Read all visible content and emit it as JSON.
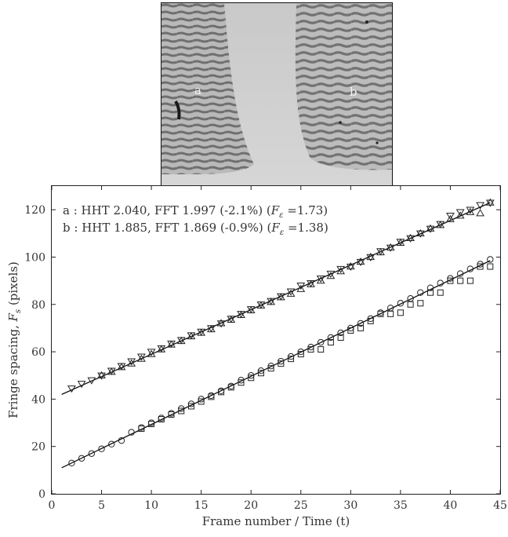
{
  "image_labels": {
    "a": "a",
    "b": "b"
  },
  "chart_data": {
    "type": "scatter",
    "xlabel": "Frame number / Time (t)",
    "ylabel_main": "Fringe spacing, ",
    "ylabel_sym": "F",
    "ylabel_sub": "s",
    "ylabel_unit": " (pixels)",
    "xlim": [
      0,
      45
    ],
    "ylim": [
      0,
      130
    ],
    "xticks": [
      0,
      5,
      10,
      15,
      20,
      25,
      30,
      35,
      40,
      45
    ],
    "yticks": [
      0,
      20,
      40,
      60,
      80,
      100,
      120
    ],
    "grid": false,
    "legend_position": "top-left",
    "legend": [
      {
        "prefix": "a : HHT 2.040, FFT 1.997 (-2.1%) (",
        "sym": "F",
        "sub": "ε",
        "suffix": " =1.73)"
      },
      {
        "prefix": "b : HHT 1.885, FFT 1.869 (-0.9%) (",
        "sym": "F",
        "sub": "ε",
        "suffix": " =1.38)"
      }
    ],
    "fit_lines": [
      {
        "name": "a",
        "x": [
          1,
          44
        ],
        "y": [
          42.0,
          123.0
        ]
      },
      {
        "name": "b",
        "x": [
          1,
          44
        ],
        "y": [
          11.0,
          98.5
        ]
      }
    ],
    "series": [
      {
        "name": "a",
        "marker": "triangle-down",
        "x": [
          2,
          3,
          4,
          5,
          6,
          7,
          8,
          9,
          10,
          11,
          12,
          13,
          14,
          15,
          16,
          17,
          18,
          19,
          20,
          21,
          22,
          23,
          24,
          25,
          26,
          27,
          28,
          29,
          30,
          31,
          32,
          33,
          34,
          35,
          36,
          37,
          38,
          39,
          40,
          41,
          42,
          43,
          44
        ],
        "y": [
          44.5,
          46.5,
          48,
          50,
          52,
          54,
          56,
          58,
          60,
          61.5,
          63.5,
          65,
          67,
          68.5,
          70,
          72,
          74,
          76,
          78,
          80,
          81.5,
          83.5,
          85.5,
          88,
          89,
          91,
          93,
          95,
          96,
          98,
          100,
          102.5,
          104,
          106.5,
          108,
          110,
          112,
          114,
          117.5,
          119,
          120,
          122,
          123
        ]
      },
      {
        "name": "a",
        "marker": "triangle-up",
        "x": [
          5,
          6,
          7,
          8,
          9,
          10,
          11,
          12,
          13,
          14,
          15,
          16,
          17,
          18,
          19,
          20,
          21,
          22,
          23,
          24,
          25,
          26,
          27,
          28,
          29,
          30,
          31,
          32,
          33,
          34,
          35,
          36,
          37,
          38,
          39,
          40,
          41,
          42,
          43,
          44
        ],
        "y": [
          50,
          51.5,
          53.5,
          55,
          57,
          59,
          61,
          63,
          64.5,
          66.5,
          68,
          69.5,
          72,
          73.5,
          75.5,
          77.5,
          79.5,
          81,
          83,
          84.5,
          86.5,
          88.5,
          90,
          92,
          94,
          96,
          98,
          100,
          102,
          104,
          106,
          108,
          110,
          112,
          113.5,
          116,
          117.5,
          119,
          118.5,
          123
        ]
      },
      {
        "name": "b",
        "marker": "circle",
        "x": [
          2,
          3,
          4,
          5,
          6,
          7,
          8,
          9,
          10,
          11,
          12,
          13,
          14,
          15,
          16,
          17,
          18,
          19,
          20,
          21,
          22,
          23,
          24,
          25,
          26,
          27,
          28,
          29,
          30,
          31,
          32,
          33,
          34,
          35,
          36,
          37,
          38,
          39,
          40,
          41,
          42,
          43,
          44
        ],
        "y": [
          13,
          15,
          17,
          19,
          21,
          22.5,
          26,
          28,
          30,
          32,
          34,
          36,
          38,
          40,
          41.5,
          43.5,
          45.5,
          48,
          50,
          52,
          54,
          56,
          58,
          60,
          62,
          64,
          66,
          68,
          70,
          72,
          74,
          76.5,
          78.5,
          80.5,
          82.5,
          85,
          87,
          89,
          91,
          93,
          95,
          97,
          99
        ]
      },
      {
        "name": "b",
        "marker": "square",
        "x": [
          9,
          10,
          11,
          12,
          13,
          14,
          15,
          16,
          17,
          18,
          19,
          20,
          21,
          22,
          23,
          24,
          25,
          26,
          27,
          28,
          29,
          30,
          31,
          32,
          33,
          34,
          35,
          36,
          37,
          38,
          39,
          40,
          41,
          42,
          43,
          44
        ],
        "y": [
          27.5,
          29.5,
          31.5,
          33.5,
          35,
          37,
          39,
          41,
          43,
          45,
          47,
          49,
          51,
          53,
          55,
          57,
          59,
          61,
          61,
          64,
          66,
          69,
          70,
          73,
          76,
          76,
          76.5,
          80,
          80.5,
          85,
          85,
          90,
          90,
          90,
          96,
          96
        ]
      }
    ]
  }
}
